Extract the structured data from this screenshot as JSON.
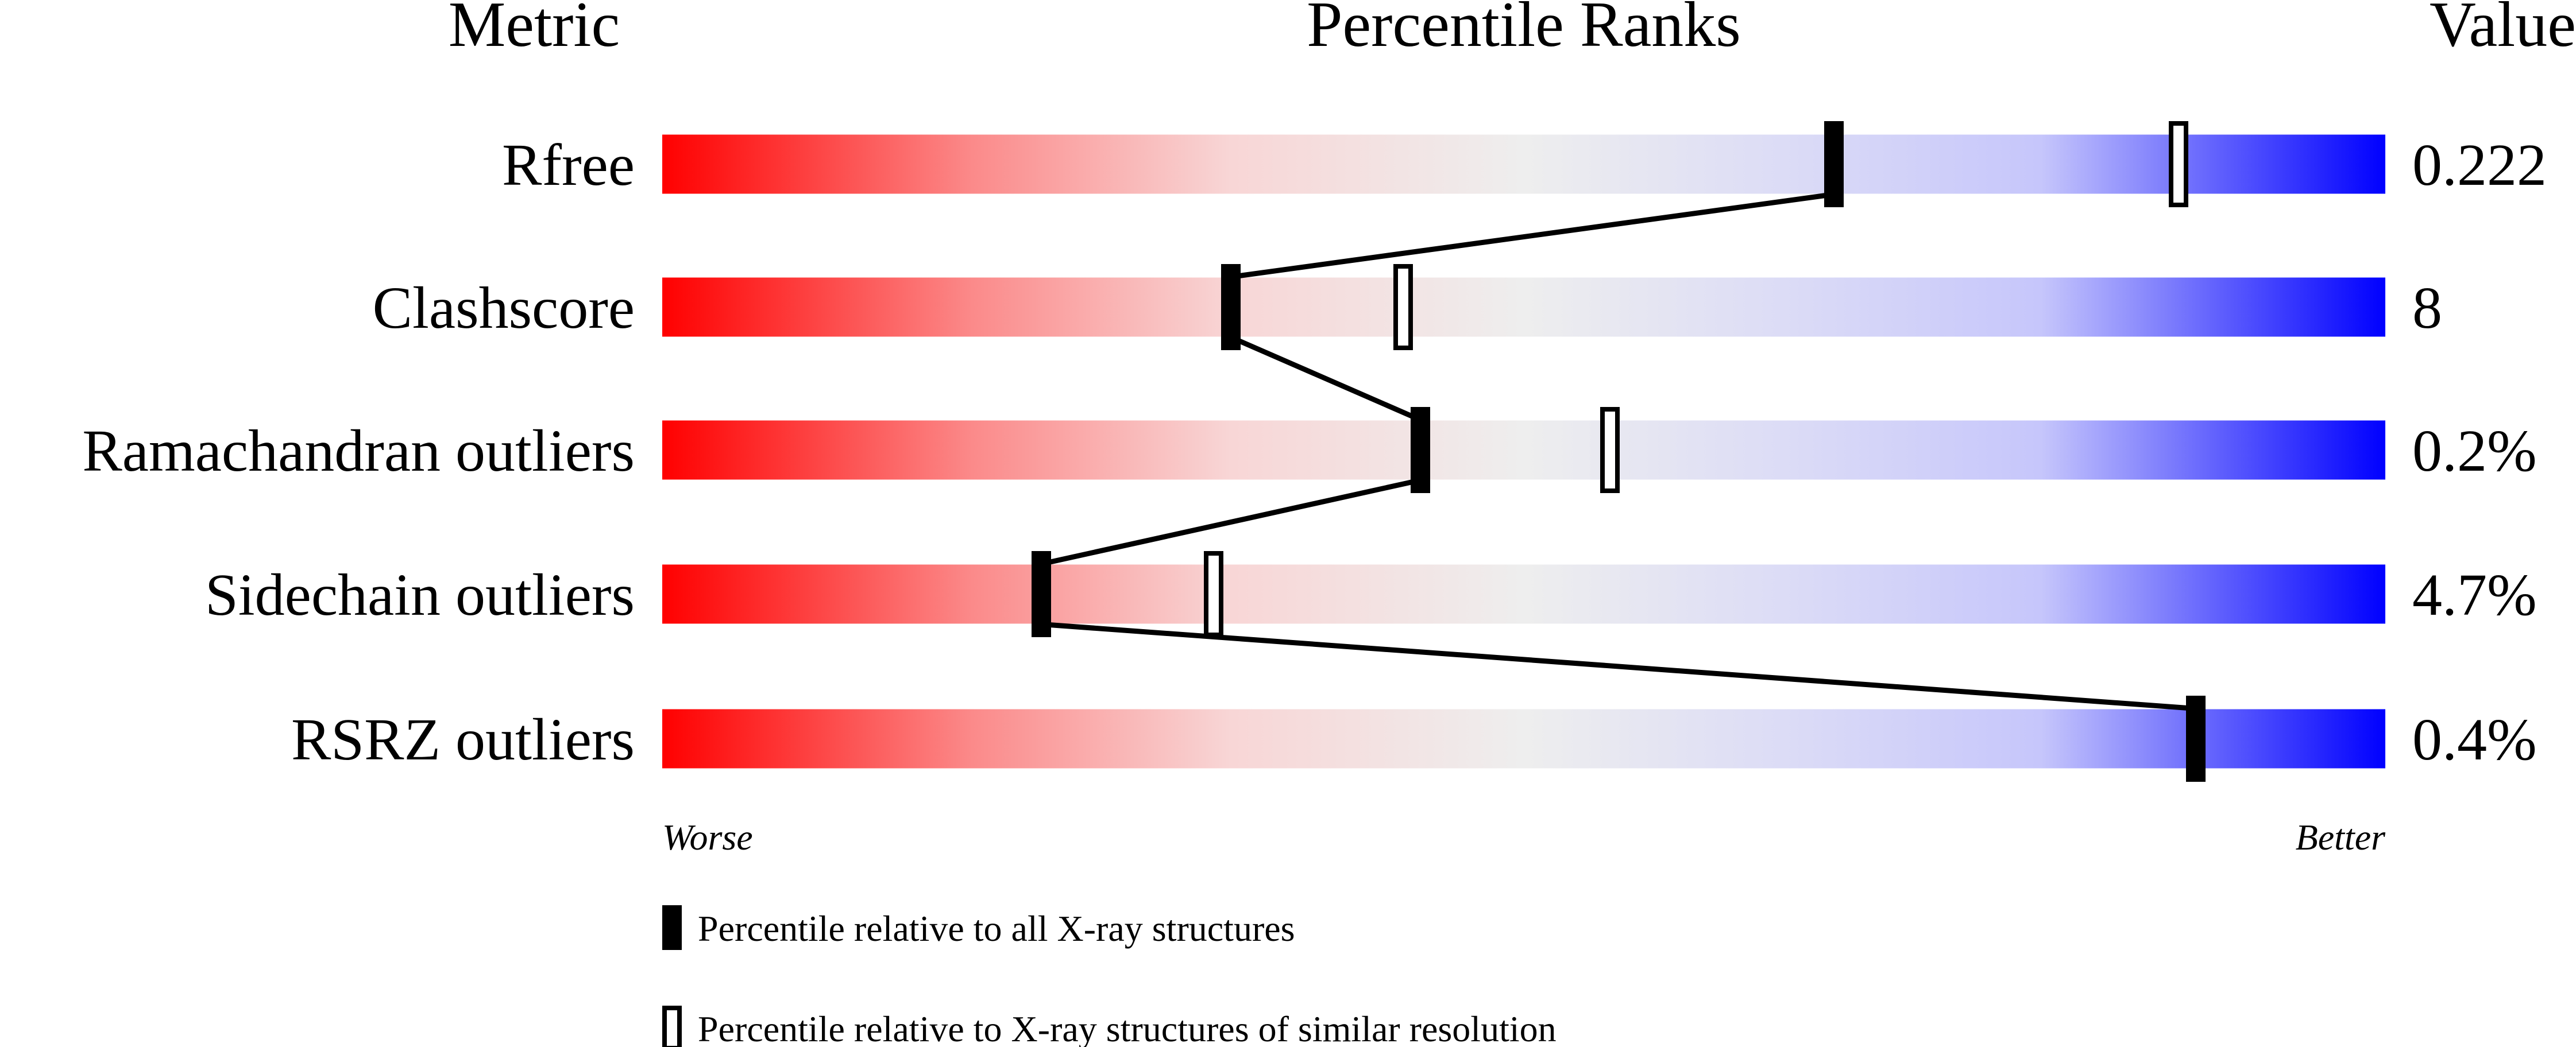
{
  "chart_data": {
    "type": "percentile-bar",
    "headers": {
      "metric": "Metric",
      "ranks": "Percentile Ranks",
      "value": "Value"
    },
    "xlim": [
      0,
      100
    ],
    "axis_ends": {
      "left": "Worse",
      "right": "Better"
    },
    "gradient_colors": [
      "#ff0000",
      "#eeeeee",
      "#0000ff"
    ],
    "rows": [
      {
        "metric": "Rfree",
        "value": "0.222",
        "percentile_all": 68,
        "percentile_similar": 88
      },
      {
        "metric": "Clashscore",
        "value": "8",
        "percentile_all": 33,
        "percentile_similar": 43
      },
      {
        "metric": "Ramachandran outliers",
        "value": "0.2%",
        "percentile_all": 44,
        "percentile_similar": 55
      },
      {
        "metric": "Sidechain outliers",
        "value": "4.7%",
        "percentile_all": 22,
        "percentile_similar": 32
      },
      {
        "metric": "RSRZ outliers",
        "value": "0.4%",
        "percentile_all": 89,
        "percentile_similar": null
      }
    ],
    "legend": [
      {
        "marker": "filled",
        "label": "Percentile relative to all X-ray structures"
      },
      {
        "marker": "open",
        "label": "Percentile relative to X-ray structures of similar resolution"
      }
    ]
  }
}
